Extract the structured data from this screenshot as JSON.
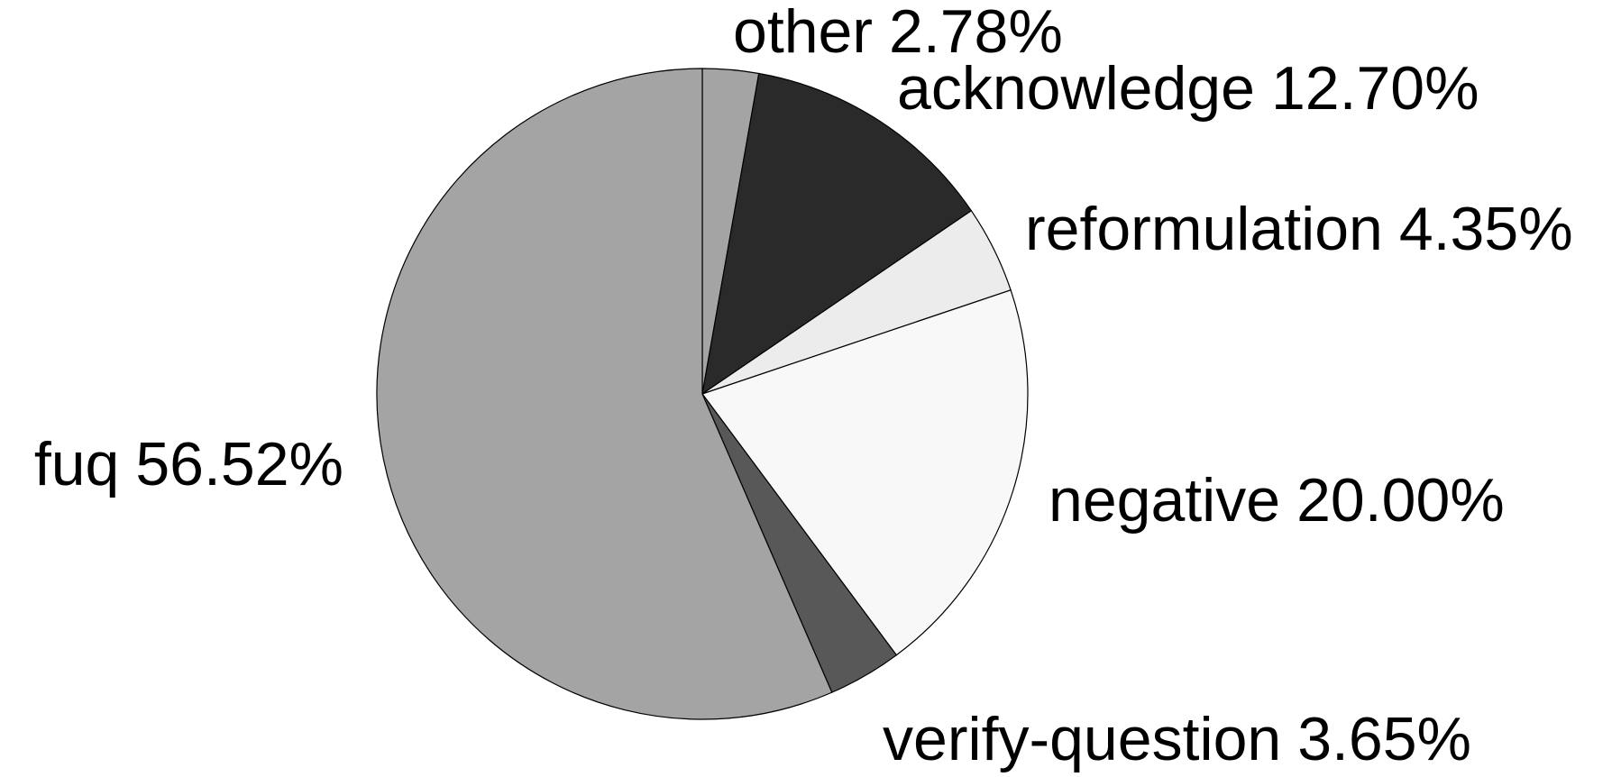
{
  "chart_data": {
    "type": "pie",
    "categories": [
      "other",
      "acknowledge",
      "reformulation",
      "negative",
      "verify-question",
      "fuq"
    ],
    "values": [
      2.78,
      12.7,
      4.35,
      20.0,
      3.65,
      56.52
    ],
    "value_labels": [
      "2.78%",
      "12.70%",
      "4.35%",
      "20.00%",
      "3.65%",
      "56.52%"
    ],
    "colors": [
      "#a4a4a4",
      "#2a2a2a",
      "#ececec",
      "#f8f8f8",
      "#585858",
      "#a4a4a4"
    ]
  }
}
